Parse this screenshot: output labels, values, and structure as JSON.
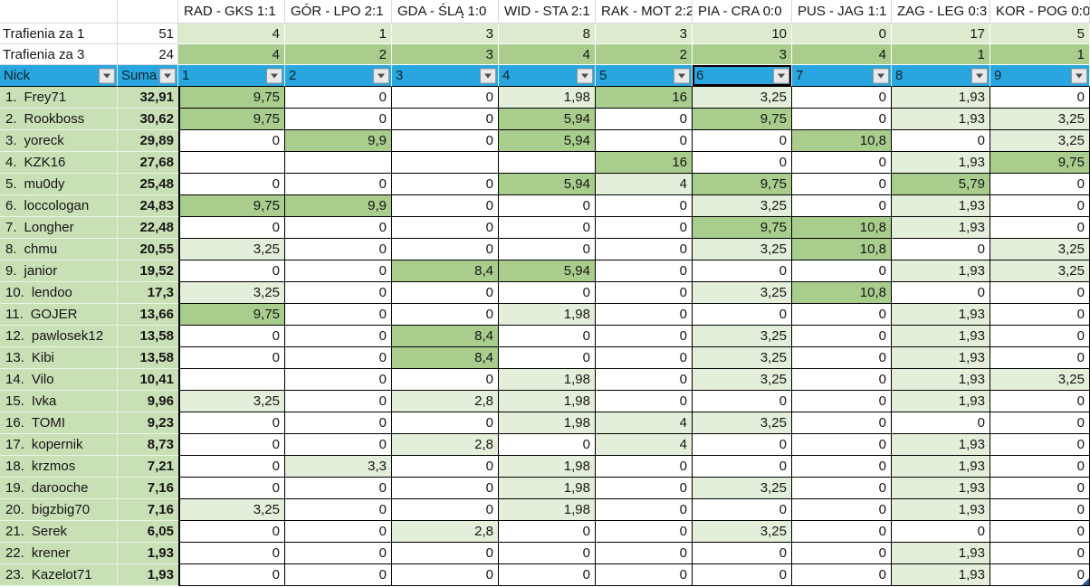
{
  "matches": [
    "RAD - GKS 1:1",
    "GÓR - LPO 2:1",
    "GDA - ŚLĄ 1:0",
    "WID - STA 2:1",
    "RAK - MOT 2:2",
    "PIA - CRA 0:0",
    "PUS - JAG 1:1",
    "ZAG - LEG 0:3",
    "KOR - POG 0:0"
  ],
  "hits_za_1": {
    "label": "Trafienia za 1",
    "total": "51",
    "values": [
      "4",
      "1",
      "3",
      "8",
      "3",
      "10",
      "0",
      "17",
      "5"
    ]
  },
  "hits_za_3": {
    "label": "Trafienia za 3",
    "total": "24",
    "values": [
      "4",
      "2",
      "3",
      "4",
      "2",
      "3",
      "4",
      "1",
      "1"
    ]
  },
  "filter": {
    "nick_label": "Nick",
    "suma_label": "Suma",
    "columns": [
      "1",
      "2",
      "3",
      "4",
      "5",
      "6",
      "7",
      "8",
      "9"
    ],
    "selected_column": "6"
  },
  "players": [
    {
      "rank": "1.",
      "nick": "Frey71",
      "suma": "32,91",
      "scores": [
        [
          "9,75",
          "g"
        ],
        [
          "0",
          "w"
        ],
        [
          "0",
          "w"
        ],
        [
          "1,98",
          "l"
        ],
        [
          "16",
          "g"
        ],
        [
          "3,25",
          "l"
        ],
        [
          "0",
          "w"
        ],
        [
          "1,93",
          "l"
        ],
        [
          "0",
          "w"
        ]
      ]
    },
    {
      "rank": "2.",
      "nick": "Rookboss",
      "suma": "30,62",
      "scores": [
        [
          "9,75",
          "g"
        ],
        [
          "0",
          "w"
        ],
        [
          "0",
          "w"
        ],
        [
          "5,94",
          "g"
        ],
        [
          "0",
          "w"
        ],
        [
          "9,75",
          "g"
        ],
        [
          "0",
          "w"
        ],
        [
          "1,93",
          "l"
        ],
        [
          "3,25",
          "l"
        ]
      ]
    },
    {
      "rank": "3.",
      "nick": "yoreck",
      "suma": "29,89",
      "scores": [
        [
          "0",
          "w"
        ],
        [
          "9,9",
          "g"
        ],
        [
          "0",
          "w"
        ],
        [
          "5,94",
          "g"
        ],
        [
          "0",
          "w"
        ],
        [
          "0",
          "w"
        ],
        [
          "10,8",
          "g"
        ],
        [
          "0",
          "w"
        ],
        [
          "3,25",
          "l"
        ]
      ]
    },
    {
      "rank": "4.",
      "nick": "KZK16",
      "suma": "27,68",
      "scores": [
        [
          "",
          "w"
        ],
        [
          "",
          "w"
        ],
        [
          "",
          "w"
        ],
        [
          "",
          "w"
        ],
        [
          "16",
          "g"
        ],
        [
          "0",
          "w"
        ],
        [
          "0",
          "w"
        ],
        [
          "1,93",
          "l"
        ],
        [
          "9,75",
          "g"
        ]
      ]
    },
    {
      "rank": "5.",
      "nick": "mu0dy",
      "suma": "25,48",
      "scores": [
        [
          "0",
          "w"
        ],
        [
          "0",
          "w"
        ],
        [
          "0",
          "w"
        ],
        [
          "5,94",
          "g"
        ],
        [
          "4",
          "l"
        ],
        [
          "9,75",
          "g"
        ],
        [
          "0",
          "w"
        ],
        [
          "5,79",
          "g"
        ],
        [
          "0",
          "w"
        ]
      ]
    },
    {
      "rank": "6.",
      "nick": "loccologan",
      "suma": "24,83",
      "scores": [
        [
          "9,75",
          "g"
        ],
        [
          "9,9",
          "g"
        ],
        [
          "0",
          "w"
        ],
        [
          "0",
          "w"
        ],
        [
          "0",
          "w"
        ],
        [
          "3,25",
          "l"
        ],
        [
          "0",
          "w"
        ],
        [
          "1,93",
          "l"
        ],
        [
          "0",
          "w"
        ]
      ]
    },
    {
      "rank": "7.",
      "nick": "Longher",
      "suma": "22,48",
      "scores": [
        [
          "0",
          "w"
        ],
        [
          "0",
          "w"
        ],
        [
          "0",
          "w"
        ],
        [
          "0",
          "w"
        ],
        [
          "0",
          "w"
        ],
        [
          "9,75",
          "g"
        ],
        [
          "10,8",
          "g"
        ],
        [
          "1,93",
          "l"
        ],
        [
          "0",
          "w"
        ]
      ]
    },
    {
      "rank": "8.",
      "nick": "chmu",
      "suma": "20,55",
      "scores": [
        [
          "3,25",
          "l"
        ],
        [
          "0",
          "w"
        ],
        [
          "0",
          "w"
        ],
        [
          "0",
          "w"
        ],
        [
          "0",
          "w"
        ],
        [
          "3,25",
          "l"
        ],
        [
          "10,8",
          "g"
        ],
        [
          "0",
          "w"
        ],
        [
          "3,25",
          "l"
        ]
      ]
    },
    {
      "rank": "9.",
      "nick": "janior",
      "suma": "19,52",
      "scores": [
        [
          "0",
          "w"
        ],
        [
          "0",
          "w"
        ],
        [
          "8,4",
          "g"
        ],
        [
          "5,94",
          "g"
        ],
        [
          "0",
          "w"
        ],
        [
          "0",
          "w"
        ],
        [
          "0",
          "w"
        ],
        [
          "1,93",
          "l"
        ],
        [
          "3,25",
          "l"
        ]
      ]
    },
    {
      "rank": "10.",
      "nick": "lendoo",
      "suma": "17,3",
      "scores": [
        [
          "3,25",
          "l"
        ],
        [
          "0",
          "w"
        ],
        [
          "0",
          "w"
        ],
        [
          "0",
          "w"
        ],
        [
          "0",
          "w"
        ],
        [
          "3,25",
          "l"
        ],
        [
          "10,8",
          "g"
        ],
        [
          "0",
          "w"
        ],
        [
          "0",
          "w"
        ]
      ]
    },
    {
      "rank": "11.",
      "nick": "GOJER",
      "suma": "13,66",
      "scores": [
        [
          "9,75",
          "g"
        ],
        [
          "0",
          "w"
        ],
        [
          "0",
          "w"
        ],
        [
          "1,98",
          "l"
        ],
        [
          "0",
          "w"
        ],
        [
          "0",
          "w"
        ],
        [
          "0",
          "w"
        ],
        [
          "1,93",
          "l"
        ],
        [
          "0",
          "w"
        ]
      ]
    },
    {
      "rank": "12.",
      "nick": "pawlosek12",
      "suma": "13,58",
      "scores": [
        [
          "0",
          "w"
        ],
        [
          "0",
          "w"
        ],
        [
          "8,4",
          "g"
        ],
        [
          "0",
          "w"
        ],
        [
          "0",
          "w"
        ],
        [
          "3,25",
          "l"
        ],
        [
          "0",
          "w"
        ],
        [
          "1,93",
          "l"
        ],
        [
          "0",
          "w"
        ]
      ]
    },
    {
      "rank": "13.",
      "nick": "Kibi",
      "suma": "13,58",
      "scores": [
        [
          "0",
          "w"
        ],
        [
          "0",
          "w"
        ],
        [
          "8,4",
          "g"
        ],
        [
          "0",
          "w"
        ],
        [
          "0",
          "w"
        ],
        [
          "3,25",
          "l"
        ],
        [
          "0",
          "w"
        ],
        [
          "1,93",
          "l"
        ],
        [
          "0",
          "w"
        ]
      ]
    },
    {
      "rank": "14.",
      "nick": "Vilo",
      "suma": "10,41",
      "scores": [
        [
          "",
          "w"
        ],
        [
          "0",
          "w"
        ],
        [
          "0",
          "w"
        ],
        [
          "1,98",
          "l"
        ],
        [
          "0",
          "w"
        ],
        [
          "3,25",
          "l"
        ],
        [
          "0",
          "w"
        ],
        [
          "1,93",
          "l"
        ],
        [
          "3,25",
          "l"
        ]
      ]
    },
    {
      "rank": "15.",
      "nick": "Ivka",
      "suma": "9,96",
      "scores": [
        [
          "3,25",
          "l"
        ],
        [
          "0",
          "w"
        ],
        [
          "2,8",
          "l"
        ],
        [
          "1,98",
          "l"
        ],
        [
          "0",
          "w"
        ],
        [
          "0",
          "w"
        ],
        [
          "0",
          "w"
        ],
        [
          "1,93",
          "l"
        ],
        [
          "0",
          "w"
        ]
      ]
    },
    {
      "rank": "16.",
      "nick": "TOMI",
      "suma": "9,23",
      "scores": [
        [
          "0",
          "w"
        ],
        [
          "0",
          "w"
        ],
        [
          "0",
          "w"
        ],
        [
          "1,98",
          "l"
        ],
        [
          "4",
          "l"
        ],
        [
          "3,25",
          "l"
        ],
        [
          "0",
          "w"
        ],
        [
          "0",
          "w"
        ],
        [
          "0",
          "w"
        ]
      ]
    },
    {
      "rank": "17.",
      "nick": "kopernik",
      "suma": "8,73",
      "scores": [
        [
          "0",
          "w"
        ],
        [
          "0",
          "w"
        ],
        [
          "2,8",
          "l"
        ],
        [
          "0",
          "w"
        ],
        [
          "4",
          "l"
        ],
        [
          "0",
          "w"
        ],
        [
          "0",
          "w"
        ],
        [
          "1,93",
          "l"
        ],
        [
          "0",
          "w"
        ]
      ]
    },
    {
      "rank": "18.",
      "nick": "krzmos",
      "suma": "7,21",
      "scores": [
        [
          "0",
          "w"
        ],
        [
          "3,3",
          "l"
        ],
        [
          "0",
          "w"
        ],
        [
          "1,98",
          "l"
        ],
        [
          "0",
          "w"
        ],
        [
          "0",
          "w"
        ],
        [
          "0",
          "w"
        ],
        [
          "1,93",
          "l"
        ],
        [
          "0",
          "w"
        ]
      ]
    },
    {
      "rank": "19.",
      "nick": "darooche",
      "suma": "7,16",
      "scores": [
        [
          "0",
          "w"
        ],
        [
          "0",
          "w"
        ],
        [
          "0",
          "w"
        ],
        [
          "1,98",
          "l"
        ],
        [
          "0",
          "w"
        ],
        [
          "3,25",
          "l"
        ],
        [
          "0",
          "w"
        ],
        [
          "1,93",
          "l"
        ],
        [
          "0",
          "w"
        ]
      ]
    },
    {
      "rank": "20.",
      "nick": "bigzbig70",
      "suma": "7,16",
      "scores": [
        [
          "3,25",
          "l"
        ],
        [
          "0",
          "w"
        ],
        [
          "0",
          "w"
        ],
        [
          "1,98",
          "l"
        ],
        [
          "0",
          "w"
        ],
        [
          "0",
          "w"
        ],
        [
          "0",
          "w"
        ],
        [
          "1,93",
          "l"
        ],
        [
          "0",
          "w"
        ]
      ]
    },
    {
      "rank": "21.",
      "nick": "Serek",
      "suma": "6,05",
      "scores": [
        [
          "0",
          "w"
        ],
        [
          "0",
          "w"
        ],
        [
          "2,8",
          "l"
        ],
        [
          "0",
          "w"
        ],
        [
          "0",
          "w"
        ],
        [
          "3,25",
          "l"
        ],
        [
          "0",
          "w"
        ],
        [
          "0",
          "w"
        ],
        [
          "0",
          "w"
        ]
      ]
    },
    {
      "rank": "22.",
      "nick": "krener",
      "suma": "1,93",
      "scores": [
        [
          "0",
          "w"
        ],
        [
          "0",
          "w"
        ],
        [
          "0",
          "w"
        ],
        [
          "0",
          "w"
        ],
        [
          "0",
          "w"
        ],
        [
          "0",
          "w"
        ],
        [
          "0",
          "w"
        ],
        [
          "1,93",
          "l"
        ],
        [
          "0",
          "w"
        ]
      ]
    },
    {
      "rank": "23.",
      "nick": "Kazelot71",
      "suma": "1,93",
      "scores": [
        [
          "0",
          "w"
        ],
        [
          "0",
          "w"
        ],
        [
          "0",
          "w"
        ],
        [
          "0",
          "w"
        ],
        [
          "0",
          "w"
        ],
        [
          "0",
          "w"
        ],
        [
          "0",
          "w"
        ],
        [
          "1,93",
          "l"
        ],
        [
          "0",
          "w"
        ]
      ]
    }
  ],
  "colors": {
    "header_blue": "#29a6df",
    "green_medium": "#a9cd8d",
    "green_light": "#e3efda",
    "hits1_green": "#dceacd",
    "hits3_green": "#a9cd8d",
    "name_col_green": "#c9dfb5",
    "fill_handle_blue": "#2f5597"
  }
}
